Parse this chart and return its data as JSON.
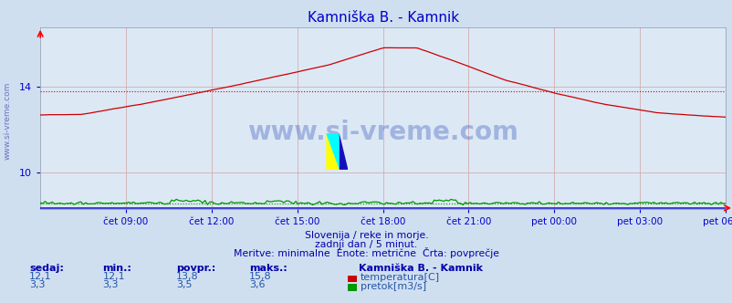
{
  "title": "Kamniška B. - Kamnik",
  "title_color": "#0000cc",
  "background_color": "#d0dff0",
  "plot_bg_color": "#dde8f5",
  "x_tick_labels": [
    "čet 09:00",
    "čet 12:00",
    "čet 15:00",
    "čet 18:00",
    "čet 21:00",
    "pet 00:00",
    "pet 03:00",
    "pet 06:00"
  ],
  "x_tick_positions": [
    0.125,
    0.25,
    0.375,
    0.5,
    0.625,
    0.75,
    0.875,
    1.0
  ],
  "y_ticks": [
    10,
    14
  ],
  "ylim": [
    8.3,
    16.8
  ],
  "xlim": [
    0.0,
    1.0
  ],
  "temp_color": "#cc0000",
  "flow_color": "#009900",
  "sidebar_text": "www.si-vreme.com",
  "footer_line1": "Slovenija / reke in morje.",
  "footer_line2": "zadnji dan / 5 minut.",
  "footer_line3": "Meritve: minimalne  Enote: metrične  Črta: povprečje",
  "footer_color": "#0000aa",
  "stats_label_color": "#0000aa",
  "stats_value_color": "#2255aa",
  "stat_headers": [
    "sedaj:",
    "min.:",
    "povpr.:",
    "maks.:"
  ],
  "stat_temp": [
    12.1,
    12.1,
    13.8,
    15.8
  ],
  "stat_flow": [
    3.3,
    3.3,
    3.5,
    3.6
  ],
  "legend_station": "Kamniška B. - Kamnik",
  "legend_temp_label": "temperatura[C]",
  "legend_flow_label": "pretok[m3/s]",
  "temp_avg_value": 13.8,
  "flow_avg_plot": 8.58,
  "n_points": 288
}
